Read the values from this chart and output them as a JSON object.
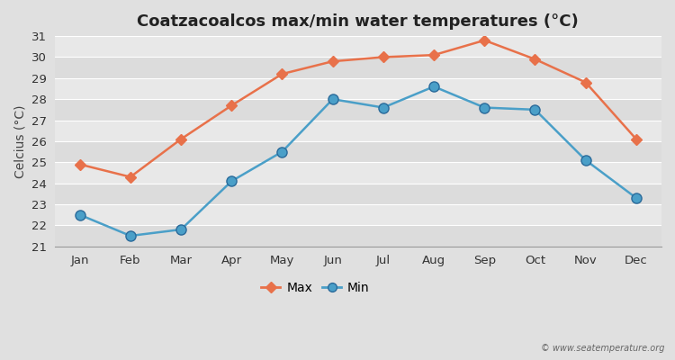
{
  "title": "Coatzacoalcos max/min water temperatures (°C)",
  "ylabel": "Celcius (°C)",
  "months": [
    "Jan",
    "Feb",
    "Mar",
    "Apr",
    "May",
    "Jun",
    "Jul",
    "Aug",
    "Sep",
    "Oct",
    "Nov",
    "Dec"
  ],
  "max_values": [
    24.9,
    24.3,
    26.1,
    27.7,
    29.2,
    29.8,
    30.0,
    30.1,
    30.8,
    29.9,
    28.8,
    26.1
  ],
  "min_values": [
    22.5,
    21.5,
    21.8,
    24.1,
    25.5,
    28.0,
    27.6,
    28.6,
    27.6,
    27.5,
    25.1,
    23.3
  ],
  "max_color": "#E8714A",
  "min_color": "#4A9FC8",
  "max_marker": "D",
  "min_marker": "o",
  "max_marker_size": 6,
  "min_marker_size": 8,
  "line_width": 1.8,
  "ylim": [
    21,
    31
  ],
  "yticks": [
    21,
    22,
    23,
    24,
    25,
    26,
    27,
    28,
    29,
    30,
    31
  ],
  "band_colors": [
    "#DCDCDC",
    "#E8E8E8"
  ],
  "outer_bg": "#E0E0E0",
  "grid_line_color": "#ffffff",
  "title_fontsize": 13,
  "label_fontsize": 10,
  "tick_fontsize": 9.5,
  "legend_labels": [
    "Max",
    "Min"
  ],
  "watermark": "© www.seatemperature.org"
}
